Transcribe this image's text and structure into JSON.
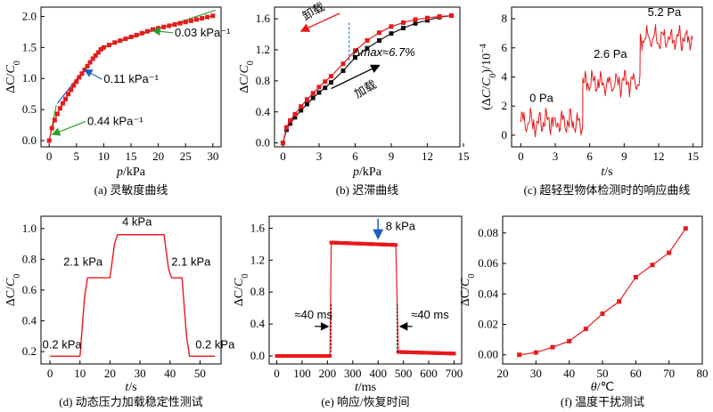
{
  "chart_data": [
    {
      "id": "a",
      "type": "line",
      "caption": "(a) 灵敏度曲线",
      "xlabel": "p/kPa",
      "ylabel": "ΔC/C0",
      "xlim": [
        -1.5,
        31.5
      ],
      "ylim": [
        -0.1,
        2.15
      ],
      "xticks": [
        0,
        5,
        10,
        15,
        20,
        25,
        30
      ],
      "yticks": [
        0.0,
        0.5,
        1.0,
        1.5,
        2.0
      ],
      "series": [
        {
          "color": "#e8191c",
          "marker": "square",
          "x": [
            0,
            0.5,
            1,
            1.5,
            2,
            2.5,
            3,
            3.5,
            4,
            4.5,
            5,
            5.5,
            6,
            6.5,
            7,
            7.5,
            8,
            8.5,
            9,
            9.5,
            10,
            11,
            12,
            13,
            14,
            15,
            16,
            17,
            18,
            19,
            20,
            21,
            22,
            23,
            24,
            25,
            26,
            27,
            28,
            29,
            30
          ],
          "y": [
            0,
            0.2,
            0.33,
            0.43,
            0.52,
            0.6,
            0.67,
            0.75,
            0.82,
            0.89,
            0.95,
            1.02,
            1.08,
            1.14,
            1.2,
            1.26,
            1.32,
            1.37,
            1.42,
            1.47,
            1.5,
            1.54,
            1.58,
            1.61,
            1.64,
            1.67,
            1.7,
            1.73,
            1.76,
            1.79,
            1.81,
            1.83,
            1.85,
            1.87,
            1.89,
            1.91,
            1.93,
            1.95,
            1.97,
            1.99,
            2.01
          ]
        }
      ],
      "fit_lines": [
        {
          "color": "#2e9e2e",
          "x": [
            0,
            1.3
          ],
          "y": [
            0.0,
            0.57
          ]
        },
        {
          "color": "#1f5fbf",
          "x": [
            1.5,
            9.0
          ],
          "y": [
            0.6,
            1.43
          ]
        },
        {
          "color": "#2e9e2e",
          "x": [
            9.0,
            30.5
          ],
          "y": [
            1.48,
            2.1
          ]
        }
      ],
      "annotations": [
        {
          "text": "0.44 kPa⁻¹",
          "color": "#2e9e2e",
          "at": [
            0.6,
            0.1
          ],
          "label_at": [
            7,
            0.25
          ]
        },
        {
          "text": "0.11 kPa⁻¹",
          "color": "#1f5fbf",
          "at": [
            6.5,
            1.14
          ],
          "label_at": [
            10,
            0.93
          ]
        },
        {
          "text": "0.03 kPa⁻¹",
          "color": "#2e9e2e",
          "at": [
            19,
            1.77
          ],
          "label_at": [
            23,
            1.68
          ]
        }
      ]
    },
    {
      "id": "b",
      "type": "line",
      "caption": "(b) 迟滞曲线",
      "xlabel": "p/kPa",
      "ylabel": "ΔC/C0",
      "xlim": [
        -0.7,
        14.7
      ],
      "ylim": [
        -0.05,
        1.75
      ],
      "xticks": [
        0,
        3,
        6,
        9,
        12,
        15
      ],
      "yticks": [
        0.0,
        0.4,
        0.8,
        1.2,
        1.6
      ],
      "series": [
        {
          "name": "加载",
          "color": "#111111",
          "marker": "square",
          "x": [
            0,
            0.3,
            0.6,
            1,
            1.5,
            2,
            2.5,
            3,
            3.5,
            4,
            5,
            6,
            7,
            8,
            9,
            10,
            11,
            12,
            13,
            14
          ],
          "y": [
            0,
            0.17,
            0.25,
            0.33,
            0.42,
            0.5,
            0.58,
            0.65,
            0.71,
            0.78,
            0.93,
            1.1,
            1.22,
            1.32,
            1.41,
            1.48,
            1.54,
            1.58,
            1.62,
            1.64
          ]
        },
        {
          "name": "卸载",
          "color": "#e8191c",
          "marker": "square",
          "x": [
            0,
            0.3,
            0.6,
            1,
            1.5,
            2,
            2.5,
            3,
            3.5,
            4,
            5,
            6,
            7,
            8,
            9,
            10,
            11,
            12,
            13,
            14
          ],
          "y": [
            0,
            0.2,
            0.29,
            0.37,
            0.47,
            0.56,
            0.64,
            0.72,
            0.79,
            0.86,
            1.02,
            1.19,
            1.32,
            1.42,
            1.5,
            1.55,
            1.59,
            1.61,
            1.63,
            1.64
          ]
        }
      ],
      "annotations": [
        {
          "text": "卸载"
        },
        {
          "text": "加载"
        },
        {
          "text": "Δmax≈6.7%"
        }
      ]
    },
    {
      "id": "c",
      "type": "line",
      "caption": "(c) 超轻型物体检测时的响应曲线",
      "xlabel": "t/s",
      "ylabel": "(ΔC/C0)/10⁻⁴",
      "xlim": [
        -0.8,
        15.8
      ],
      "ylim": [
        -0.8,
        8.8
      ],
      "xticks": [
        0,
        3,
        6,
        9,
        12,
        15
      ],
      "yticks": [
        0,
        2,
        4,
        6,
        8
      ],
      "steps": [
        {
          "label": "0 Pa",
          "t0": 0,
          "t1": 5.4,
          "base": 0.9
        },
        {
          "label": "2.6 Pa",
          "t0": 5.4,
          "t1": 10.4,
          "base": 3.6
        },
        {
          "label": "5.2 Pa",
          "t0": 10.4,
          "t1": 15,
          "base": 6.6
        }
      ]
    },
    {
      "id": "d",
      "type": "line",
      "caption": "(d) 动态压力加载稳定性测试",
      "xlabel": "t/s",
      "ylabel": "ΔC/C0",
      "xlim": [
        -3,
        57
      ],
      "ylim": [
        0.12,
        1.08
      ],
      "xticks": [
        0,
        10,
        20,
        30,
        40,
        50
      ],
      "yticks": [
        0.2,
        0.4,
        0.6,
        0.8,
        1.0
      ],
      "x": [
        0,
        10,
        11.5,
        12.5,
        20,
        21.5,
        22.5,
        38,
        39.5,
        40.5,
        44,
        45.5,
        46.5,
        55
      ],
      "y": [
        0.17,
        0.17,
        0.55,
        0.68,
        0.68,
        0.9,
        0.96,
        0.96,
        0.74,
        0.68,
        0.68,
        0.3,
        0.17,
        0.17
      ],
      "levels": [
        "0.2 kPa",
        "2.1 kPa",
        "4 kPa",
        "2.1 kPa",
        "0.2 kPa"
      ]
    },
    {
      "id": "e",
      "type": "scatter",
      "caption": "(e) 响应/恢复时间",
      "xlabel": "t/ms",
      "ylabel": "ΔC/C0",
      "xlim": [
        -30,
        730
      ],
      "ylim": [
        -0.1,
        1.75
      ],
      "xticks": [
        0,
        100,
        200,
        300,
        400,
        500,
        600,
        700
      ],
      "yticks": [
        0.0,
        0.4,
        0.8,
        1.2,
        1.6
      ],
      "segments": [
        {
          "x0": 0,
          "x1": 210,
          "y0": 0.0,
          "y1": 0.0
        },
        {
          "x0": 215,
          "x1": 470,
          "y0": 1.42,
          "y1": 1.39
        },
        {
          "x0": 480,
          "x1": 700,
          "y0": 0.05,
          "y1": 0.03
        }
      ],
      "annotations": [
        {
          "text": "8 kPa"
        },
        {
          "text": "≈40 ms"
        },
        {
          "text": "≈40 ms"
        }
      ]
    },
    {
      "id": "f",
      "type": "line",
      "caption": "(f) 温度干扰测试",
      "xlabel": "θ/℃",
      "ylabel": "ΔC/C0",
      "xlim": [
        20,
        80
      ],
      "ylim": [
        -0.006,
        0.091
      ],
      "xticks": [
        20,
        30,
        40,
        50,
        60,
        70,
        80
      ],
      "yticks": [
        0.0,
        0.02,
        0.04,
        0.06,
        0.08
      ],
      "x": [
        25,
        30,
        35,
        40,
        45,
        50,
        55,
        60,
        65,
        70,
        75
      ],
      "y": [
        0.0,
        0.0015,
        0.005,
        0.009,
        0.017,
        0.027,
        0.035,
        0.051,
        0.059,
        0.067,
        0.083
      ]
    }
  ]
}
